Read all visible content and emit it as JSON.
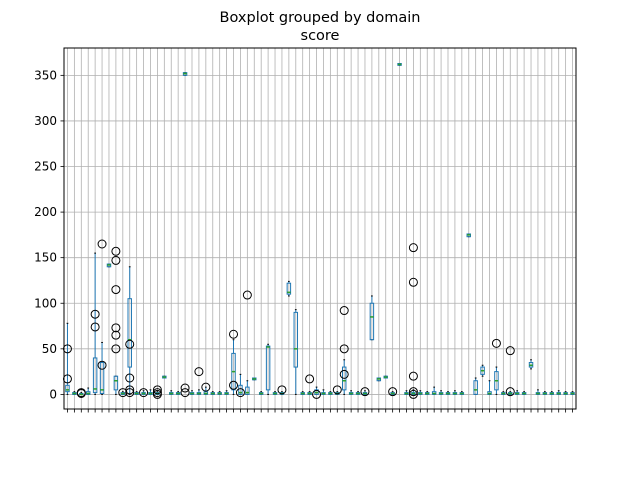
{
  "chart_data": {
    "type": "boxplot",
    "title": "Boxplot grouped by domain",
    "subtitle": "score",
    "xlabel": "",
    "ylabel": "",
    "ylim": [
      -16,
      380
    ],
    "yticks": [
      0,
      50,
      100,
      150,
      200,
      250,
      300,
      350
    ],
    "grid": true,
    "group_count": 74,
    "colors": {
      "box": "#1f77b4",
      "median": "#2ca02c",
      "flier": "#000000",
      "grid": "#b0b0b0",
      "background": "#ffffff"
    },
    "boxes": [
      {
        "q1": 3,
        "med": 5,
        "q3": 10,
        "lo": 0,
        "hi": 78,
        "fliers": [
          17,
          50
        ]
      },
      {
        "q1": 0,
        "med": 1,
        "q3": 2,
        "lo": 0,
        "hi": 3,
        "fliers": []
      },
      {
        "q1": 0,
        "med": 0,
        "q3": 1,
        "lo": 0,
        "hi": 2,
        "fliers": [
          1,
          2
        ]
      },
      {
        "q1": 0,
        "med": 1,
        "q3": 3,
        "lo": 0,
        "hi": 7,
        "fliers": []
      },
      {
        "q1": 2,
        "med": 6,
        "q3": 40,
        "lo": 0,
        "hi": 155,
        "fliers": [
          74,
          88
        ]
      },
      {
        "q1": 1,
        "med": 5,
        "q3": 35,
        "lo": 0,
        "hi": 57,
        "fliers": [
          165,
          32
        ]
      },
      {
        "q1": 140,
        "med": 142,
        "q3": 143,
        "lo": 140,
        "hi": 143,
        "fliers": []
      },
      {
        "q1": 5,
        "med": 15,
        "q3": 20,
        "lo": 0,
        "hi": 20,
        "fliers": [
          157,
          147,
          115,
          73,
          65,
          50
        ]
      },
      {
        "q1": 0,
        "med": 1,
        "q3": 2,
        "lo": 0,
        "hi": 3,
        "fliers": [
          2
        ]
      },
      {
        "q1": 30,
        "med": 60,
        "q3": 105,
        "lo": 0,
        "hi": 140,
        "fliers": [
          55,
          18,
          5,
          2
        ]
      },
      {
        "q1": 0,
        "med": 1,
        "q3": 2,
        "lo": 0,
        "hi": 3,
        "fliers": []
      },
      {
        "q1": 0,
        "med": 1,
        "q3": 2,
        "lo": 0,
        "hi": 4,
        "fliers": [
          2
        ]
      },
      {
        "q1": 0,
        "med": 1,
        "q3": 2,
        "lo": 0,
        "hi": 5,
        "fliers": []
      },
      {
        "q1": 0,
        "med": 1,
        "q3": 2,
        "lo": 0,
        "hi": 3,
        "fliers": [
          5,
          2,
          0
        ]
      },
      {
        "q1": 18,
        "med": 19,
        "q3": 20,
        "lo": 18,
        "hi": 20,
        "fliers": []
      },
      {
        "q1": 0,
        "med": 1,
        "q3": 2,
        "lo": 0,
        "hi": 4,
        "fliers": []
      },
      {
        "q1": 0,
        "med": 1,
        "q3": 2,
        "lo": 0,
        "hi": 3,
        "fliers": []
      },
      {
        "q1": 350,
        "med": 352,
        "q3": 353,
        "lo": 350,
        "hi": 353,
        "fliers": [
          7,
          2
        ]
      },
      {
        "q1": 0,
        "med": 1,
        "q3": 2,
        "lo": 0,
        "hi": 4,
        "fliers": []
      },
      {
        "q1": 0,
        "med": 1,
        "q3": 2,
        "lo": 0,
        "hi": 5,
        "fliers": [
          25
        ]
      },
      {
        "q1": 0,
        "med": 1,
        "q3": 3,
        "lo": 0,
        "hi": 8,
        "fliers": [
          8
        ]
      },
      {
        "q1": 0,
        "med": 1,
        "q3": 2,
        "lo": 0,
        "hi": 3,
        "fliers": []
      },
      {
        "q1": 0,
        "med": 1,
        "q3": 2,
        "lo": 0,
        "hi": 3,
        "fliers": []
      },
      {
        "q1": 0,
        "med": 1,
        "q3": 2,
        "lo": 0,
        "hi": 4,
        "fliers": []
      },
      {
        "q1": 5,
        "med": 25,
        "q3": 45,
        "lo": 0,
        "hi": 60,
        "fliers": [
          66,
          10
        ]
      },
      {
        "q1": 0,
        "med": 2,
        "q3": 10,
        "lo": 0,
        "hi": 22,
        "fliers": [
          2
        ]
      },
      {
        "q1": 0,
        "med": 2,
        "q3": 8,
        "lo": 0,
        "hi": 15,
        "fliers": [
          109
        ]
      },
      {
        "q1": 16,
        "med": 17,
        "q3": 18,
        "lo": 16,
        "hi": 18,
        "fliers": []
      },
      {
        "q1": 0,
        "med": 1,
        "q3": 2,
        "lo": 0,
        "hi": 3,
        "fliers": []
      },
      {
        "q1": 5,
        "med": 52,
        "q3": 53,
        "lo": 0,
        "hi": 55,
        "fliers": []
      },
      {
        "q1": 0,
        "med": 1,
        "q3": 2,
        "lo": 0,
        "hi": 3,
        "fliers": []
      },
      {
        "q1": 0,
        "med": 1,
        "q3": 2,
        "lo": 0,
        "hi": 3,
        "fliers": [
          5
        ]
      },
      {
        "q1": 110,
        "med": 112,
        "q3": 122,
        "lo": 108,
        "hi": 124,
        "fliers": []
      },
      {
        "q1": 30,
        "med": 50,
        "q3": 90,
        "lo": 0,
        "hi": 93,
        "fliers": []
      },
      {
        "q1": 0,
        "med": 1,
        "q3": 2,
        "lo": 0,
        "hi": 3,
        "fliers": []
      },
      {
        "q1": 0,
        "med": 1,
        "q3": 2,
        "lo": 0,
        "hi": 3,
        "fliers": [
          17
        ]
      },
      {
        "q1": 0,
        "med": 2,
        "q3": 5,
        "lo": 0,
        "hi": 8,
        "fliers": [
          0
        ]
      },
      {
        "q1": 0,
        "med": 1,
        "q3": 2,
        "lo": 0,
        "hi": 5,
        "fliers": []
      },
      {
        "q1": 0,
        "med": 1,
        "q3": 2,
        "lo": 0,
        "hi": 3,
        "fliers": []
      },
      {
        "q1": 0,
        "med": 1,
        "q3": 2,
        "lo": 0,
        "hi": 3,
        "fliers": [
          5
        ]
      },
      {
        "q1": 5,
        "med": 15,
        "q3": 30,
        "lo": 0,
        "hi": 38,
        "fliers": [
          92,
          50,
          22
        ]
      },
      {
        "q1": 0,
        "med": 1,
        "q3": 2,
        "lo": 0,
        "hi": 4,
        "fliers": []
      },
      {
        "q1": 0,
        "med": 1,
        "q3": 2,
        "lo": 0,
        "hi": 3,
        "fliers": []
      },
      {
        "q1": 0,
        "med": 1,
        "q3": 2,
        "lo": 0,
        "hi": 4,
        "fliers": [
          3
        ]
      },
      {
        "q1": 60,
        "med": 85,
        "q3": 100,
        "lo": 60,
        "hi": 108,
        "fliers": []
      },
      {
        "q1": 15,
        "med": 17,
        "q3": 18,
        "lo": 15,
        "hi": 18,
        "fliers": []
      },
      {
        "q1": 18,
        "med": 19,
        "q3": 20,
        "lo": 18,
        "hi": 20,
        "fliers": []
      },
      {
        "q1": 0,
        "med": 1,
        "q3": 2,
        "lo": 0,
        "hi": 3,
        "fliers": [
          3
        ]
      },
      {
        "q1": 361,
        "med": 362,
        "q3": 363,
        "lo": 361,
        "hi": 363,
        "fliers": []
      },
      {
        "q1": 0,
        "med": 1,
        "q3": 2,
        "lo": 0,
        "hi": 4,
        "fliers": []
      },
      {
        "q1": 0,
        "med": 1,
        "q3": 2,
        "lo": 0,
        "hi": 5,
        "fliers": [
          161,
          123,
          20,
          3,
          0
        ]
      },
      {
        "q1": 0,
        "med": 1,
        "q3": 2,
        "lo": 0,
        "hi": 4,
        "fliers": []
      },
      {
        "q1": 0,
        "med": 1,
        "q3": 2,
        "lo": 0,
        "hi": 3,
        "fliers": []
      },
      {
        "q1": 0,
        "med": 1,
        "q3": 3,
        "lo": 0,
        "hi": 8,
        "fliers": []
      },
      {
        "q1": 0,
        "med": 1,
        "q3": 2,
        "lo": 0,
        "hi": 4,
        "fliers": []
      },
      {
        "q1": 0,
        "med": 1,
        "q3": 2,
        "lo": 0,
        "hi": 3,
        "fliers": []
      },
      {
        "q1": 0,
        "med": 1,
        "q3": 2,
        "lo": 0,
        "hi": 4,
        "fliers": []
      },
      {
        "q1": 0,
        "med": 1,
        "q3": 2,
        "lo": 0,
        "hi": 3,
        "fliers": []
      },
      {
        "q1": 173,
        "med": 175,
        "q3": 176,
        "lo": 173,
        "hi": 176,
        "fliers": []
      },
      {
        "q1": 0,
        "med": 5,
        "q3": 15,
        "lo": 0,
        "hi": 18,
        "fliers": []
      },
      {
        "q1": 22,
        "med": 26,
        "q3": 30,
        "lo": 20,
        "hi": 32,
        "fliers": []
      },
      {
        "q1": 0,
        "med": 1,
        "q3": 3,
        "lo": 0,
        "hi": 15,
        "fliers": []
      },
      {
        "q1": 5,
        "med": 15,
        "q3": 25,
        "lo": 0,
        "hi": 30,
        "fliers": [
          56
        ]
      },
      {
        "q1": 0,
        "med": 1,
        "q3": 2,
        "lo": 0,
        "hi": 3,
        "fliers": []
      },
      {
        "q1": 0,
        "med": 1,
        "q3": 2,
        "lo": 0,
        "hi": 3,
        "fliers": [
          48,
          3
        ]
      },
      {
        "q1": 0,
        "med": 1,
        "q3": 2,
        "lo": 0,
        "hi": 4,
        "fliers": []
      },
      {
        "q1": 0,
        "med": 1,
        "q3": 2,
        "lo": 0,
        "hi": 3,
        "fliers": []
      },
      {
        "q1": 30,
        "med": 32,
        "q3": 35,
        "lo": 28,
        "hi": 38,
        "fliers": []
      },
      {
        "q1": 0,
        "med": 1,
        "q3": 2,
        "lo": 0,
        "hi": 5,
        "fliers": []
      },
      {
        "q1": 0,
        "med": 1,
        "q3": 2,
        "lo": 0,
        "hi": 3,
        "fliers": []
      },
      {
        "q1": 0,
        "med": 1,
        "q3": 2,
        "lo": 0,
        "hi": 3,
        "fliers": []
      },
      {
        "q1": 0,
        "med": 1,
        "q3": 2,
        "lo": 0,
        "hi": 4,
        "fliers": []
      },
      {
        "q1": 0,
        "med": 1,
        "q3": 2,
        "lo": 0,
        "hi": 3,
        "fliers": []
      },
      {
        "q1": 0,
        "med": 1,
        "q3": 2,
        "lo": 0,
        "hi": 3,
        "fliers": []
      }
    ]
  }
}
